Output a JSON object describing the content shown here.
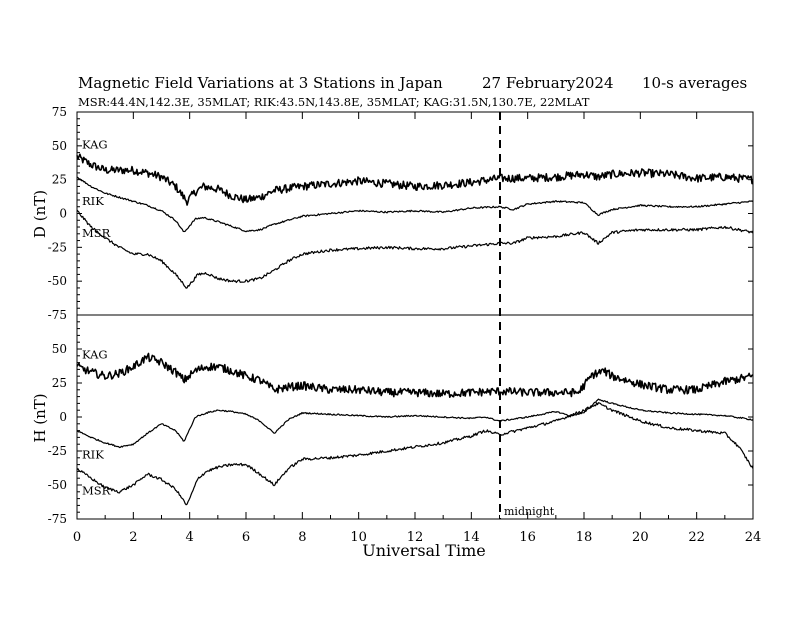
{
  "header": {
    "title": "Magnetic Field Variations at 3 Stations in Japan",
    "date": "27 February2024",
    "averaging": "10-s averages",
    "stations_info": "MSR:44.4N,142.3E, 35MLAT;  RIK:43.5N,143.8E, 35MLAT;  KAG:31.5N,130.7E, 22MLAT"
  },
  "chart_data": [
    {
      "type": "line",
      "panel": "top",
      "ylabel": "D (nT)",
      "xlabel": "",
      "xlim": [
        0,
        24
      ],
      "ylim": [
        -75,
        75
      ],
      "yticks": [
        75,
        50,
        25,
        0,
        -25,
        -50,
        -75
      ],
      "ytick_labels": [
        "75",
        "50",
        "25",
        "0",
        "-25",
        "-50",
        "-75"
      ],
      "series": [
        {
          "name": "KAG",
          "noise": 3,
          "x": [
            0,
            0.5,
            1,
            1.5,
            2,
            2.5,
            3,
            3.5,
            3.9,
            4.2,
            4.5,
            5,
            5.5,
            6,
            6.5,
            7,
            8,
            9,
            10,
            11,
            12,
            13,
            14,
            15,
            16,
            17,
            18,
            18.5,
            19,
            20,
            21,
            22,
            23,
            24
          ],
          "values": [
            42,
            36,
            32,
            32,
            32,
            30,
            27,
            20,
            9,
            16,
            20,
            18,
            13,
            10,
            12,
            17,
            20,
            22,
            24,
            22,
            20,
            21,
            23,
            26,
            26,
            27,
            29,
            27,
            29,
            30,
            29,
            26,
            27,
            25
          ]
        },
        {
          "name": "RIK",
          "noise": 0.6,
          "x": [
            0,
            0.5,
            1,
            1.5,
            2,
            2.5,
            3,
            3.5,
            3.8,
            4.2,
            4.5,
            5,
            6,
            6.5,
            7,
            8,
            9,
            10,
            11,
            12,
            13,
            14,
            15,
            15.5,
            16,
            17,
            18,
            18.5,
            19,
            20,
            21,
            22,
            23,
            24
          ],
          "values": [
            27,
            20,
            15,
            12,
            9,
            6,
            2,
            -5,
            -14,
            -4,
            -3,
            -6,
            -13,
            -12,
            -8,
            -2,
            0,
            2,
            1,
            2,
            1,
            4,
            5,
            3,
            7,
            9,
            8,
            -1,
            3,
            6,
            5,
            5,
            7,
            9
          ]
        },
        {
          "name": "MSR",
          "noise": 1,
          "x": [
            0,
            0.5,
            1,
            1.5,
            2,
            2.5,
            3,
            3.5,
            3.9,
            4.3,
            4.6,
            5,
            5.5,
            6,
            6.5,
            7,
            7.5,
            8,
            9,
            10,
            11,
            12,
            13,
            14,
            15,
            15.5,
            16,
            17,
            18,
            18.5,
            19,
            20,
            21,
            22,
            23,
            24
          ],
          "values": [
            2,
            -10,
            -18,
            -25,
            -30,
            -30,
            -35,
            -45,
            -55,
            -45,
            -44,
            -48,
            -50,
            -50,
            -48,
            -42,
            -35,
            -30,
            -27,
            -26,
            -25,
            -26,
            -26,
            -24,
            -22,
            -22,
            -18,
            -17,
            -14,
            -22,
            -14,
            -12,
            -12,
            -12,
            -10,
            -14
          ]
        }
      ]
    },
    {
      "type": "line",
      "panel": "bottom",
      "ylabel": "H (nT)",
      "xlabel": "Universal Time",
      "xlim": [
        0,
        24
      ],
      "ylim": [
        -75,
        75
      ],
      "yticks": [
        50,
        25,
        0,
        -25,
        -50,
        -75
      ],
      "ytick_labels": [
        "50",
        "25",
        "0",
        "-25",
        "-50",
        "-75"
      ],
      "xticks": [
        0,
        2,
        4,
        6,
        8,
        10,
        12,
        14,
        16,
        18,
        20,
        22,
        24
      ],
      "xtick_labels": [
        "0",
        "2",
        "4",
        "6",
        "8",
        "10",
        "12",
        "14",
        "16",
        "18",
        "20",
        "22",
        "24"
      ],
      "annotations": [
        {
          "text": "midnight",
          "x": 15
        }
      ],
      "series": [
        {
          "name": "KAG",
          "noise": 3,
          "x": [
            0,
            0.5,
            1,
            1.5,
            2,
            2.5,
            3,
            3.5,
            3.8,
            4.2,
            4.6,
            5,
            5.5,
            6,
            6.5,
            7,
            7.5,
            8,
            9,
            10,
            11,
            12,
            13,
            14,
            15,
            16,
            17,
            17.8,
            18.3,
            18.7,
            19,
            20,
            21,
            22,
            23,
            24
          ],
          "values": [
            37,
            33,
            30,
            32,
            37,
            44,
            40,
            33,
            27,
            34,
            37,
            37,
            34,
            30,
            27,
            20,
            22,
            23,
            20,
            20,
            18,
            18,
            17,
            18,
            19,
            18,
            18,
            18,
            31,
            34,
            30,
            24,
            20,
            20,
            26,
            30
          ]
        },
        {
          "name": "RIK",
          "noise": 0.5,
          "x": [
            0,
            0.5,
            1,
            1.5,
            2,
            2.5,
            3,
            3.5,
            3.8,
            4.2,
            4.6,
            5,
            5.5,
            6,
            6.5,
            7,
            7.5,
            8,
            9,
            10,
            11,
            12,
            13,
            14,
            14.5,
            15,
            16,
            17,
            17.5,
            18,
            18.5,
            19,
            20,
            21,
            22,
            23,
            24
          ],
          "values": [
            -10,
            -15,
            -19,
            -22,
            -20,
            -12,
            -5,
            -10,
            -18,
            0,
            3,
            5,
            4,
            2,
            -3,
            -12,
            -2,
            3,
            2,
            1,
            0,
            1,
            0,
            -1,
            0,
            -3,
            0,
            4,
            1,
            3,
            13,
            10,
            5,
            3,
            2,
            1,
            -2
          ]
        },
        {
          "name": "MSR",
          "noise": 1,
          "x": [
            0,
            0.5,
            1,
            1.5,
            2,
            2.5,
            3,
            3.5,
            3.9,
            4.3,
            4.6,
            5,
            5.5,
            6,
            6.5,
            7,
            7.5,
            8,
            9,
            10,
            11,
            12,
            13,
            14,
            14.5,
            15,
            16,
            17,
            17.5,
            18,
            18.5,
            19,
            20,
            21,
            22,
            23,
            23.5,
            24
          ],
          "values": [
            -38,
            -45,
            -52,
            -55,
            -50,
            -42,
            -46,
            -53,
            -65,
            -45,
            -40,
            -37,
            -35,
            -35,
            -42,
            -50,
            -38,
            -31,
            -30,
            -28,
            -25,
            -22,
            -19,
            -14,
            -10,
            -13,
            -8,
            -3,
            1,
            5,
            10,
            5,
            -3,
            -8,
            -10,
            -12,
            -22,
            -38
          ]
        }
      ]
    }
  ]
}
